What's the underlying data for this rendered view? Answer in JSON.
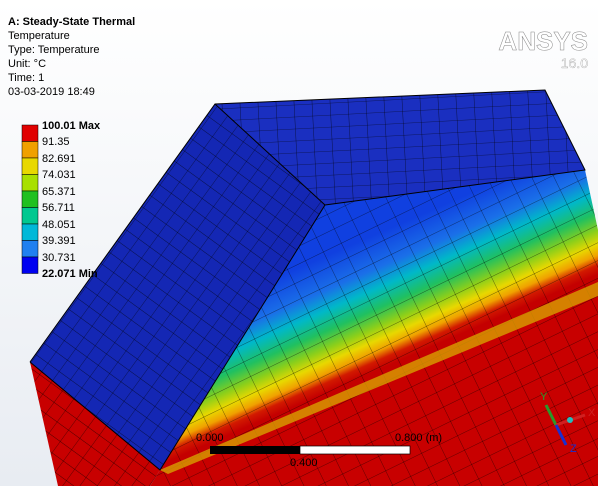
{
  "header": {
    "title": "A: Steady-State Thermal",
    "lines": [
      "Temperature",
      "Type: Temperature",
      "Unit: °C",
      "Time: 1",
      "03-03-2019 18:49"
    ]
  },
  "logo": {
    "name": "ANSYS",
    "version": "16.0"
  },
  "legend": {
    "entries": [
      "100.01 Max",
      "91.35",
      "82.691",
      "74.031",
      "65.371",
      "56.711",
      "48.051",
      "39.391",
      "30.731",
      "22.071 Min"
    ]
  },
  "scale": {
    "start": "0.000",
    "end": "0.800 (m)",
    "middle": "0.400"
  },
  "triad": {
    "x": "X",
    "y": "Y",
    "z": "Z"
  }
}
